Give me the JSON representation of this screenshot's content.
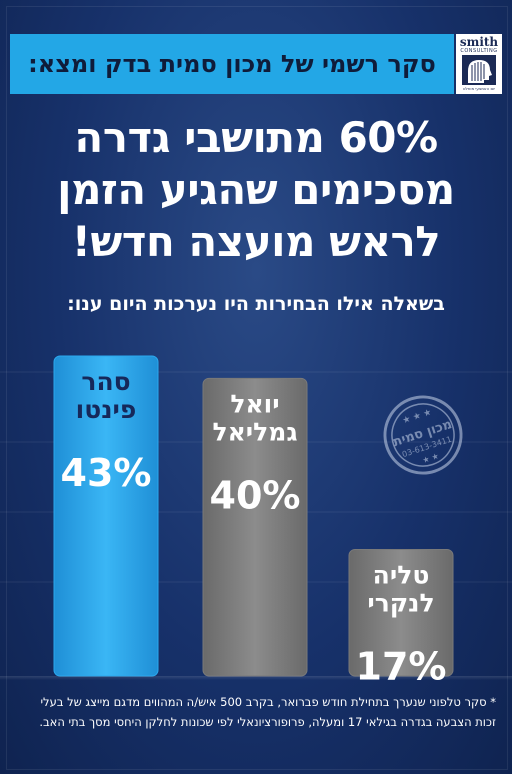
{
  "header": {
    "survey_line": "סקר רשמי של מכון סמית בדק ומצא:",
    "logo_text": "smith",
    "logo_subtext": "CONSULTING",
    "logo_tagline": "יום האמצעי מוחלט"
  },
  "headline_lines": [
    "60% מתושבי גדרה",
    "מסכימים שהגיע הזמן",
    "לראש מועצה חדש!"
  ],
  "question": "בשאלה אילו הבחירות היו נערכות היום ענו:",
  "stamp": {
    "name": "מכון סמית",
    "phone": "03-613-3411"
  },
  "chart_data": {
    "type": "bar",
    "categories": [
      "סהר פינטו",
      "יואל גמליאל",
      "טליה לנקרי"
    ],
    "name_lines": [
      [
        "סהר",
        "פינטו"
      ],
      [
        "יואל",
        "גמליאל"
      ],
      [
        "טליה",
        "לנקרי"
      ]
    ],
    "values": [
      43,
      40,
      17
    ],
    "value_labels": [
      "43%",
      "40%",
      "17%"
    ],
    "colors": [
      "#2ba8ee",
      "#7a7a7a",
      "#7a7a7a"
    ],
    "ylim": [
      0,
      43
    ]
  },
  "footnote": "* סקר טלפוני שנערך בתחילת חודש פברואר, בקרב 500 איש/ה המהווים מדגם מייצג של בעלי זכות הצבעה בגדרה בגילאי 17 ומעלה, פרופורציונאלי לפי שכונות לחלקן היחסי מסך בתי האב."
}
